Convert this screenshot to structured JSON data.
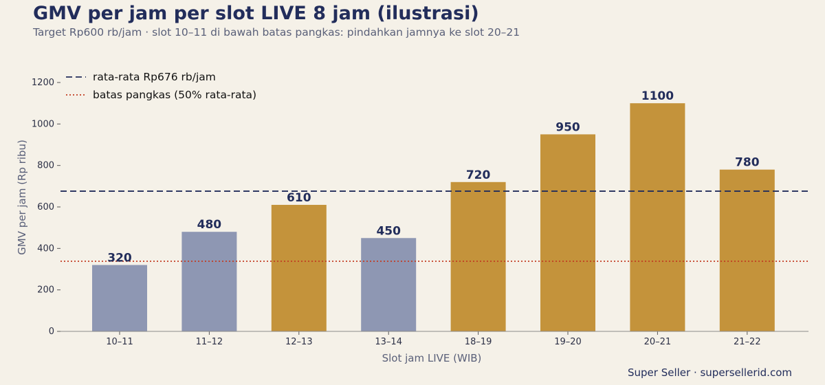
{
  "title": "GMV per jam per slot LIVE 8 jam (ilustrasi)",
  "subtitle": "Target Rp600 rb/jam · slot 10–11 di bawah batas pangkas: pindahkan jamnya ke slot 20–21",
  "footer": "Super Seller · supersellerid.com",
  "colors": {
    "high": "#c4933b",
    "low": "#8e97b3",
    "avg_line": "#222d5b",
    "cut_line": "#c23b22"
  },
  "chart_data": {
    "type": "bar",
    "categories": [
      "10–11",
      "11–12",
      "12–13",
      "13–14",
      "18–19",
      "19–20",
      "20–21",
      "21–22"
    ],
    "values": [
      320,
      480,
      610,
      450,
      720,
      950,
      1100,
      780
    ],
    "bar_colors": [
      "low",
      "low",
      "high",
      "low",
      "high",
      "high",
      "high",
      "high"
    ],
    "xlabel": "Slot jam LIVE (WIB)",
    "ylabel": "GMV per jam (Rp ribu)",
    "ylim": [
      0,
      1200
    ],
    "yticks": [
      0,
      200,
      400,
      600,
      800,
      1000,
      1200
    ],
    "grid": false,
    "legend_position": "top-left",
    "reference_lines": [
      {
        "label": "rata-rata Rp676 rb/jam",
        "value": 676,
        "style": "dashed",
        "color": "avg_line"
      },
      {
        "label": "batas pangkas (50% rata-rata)",
        "value": 338,
        "style": "dotted",
        "color": "cut_line"
      }
    ]
  }
}
